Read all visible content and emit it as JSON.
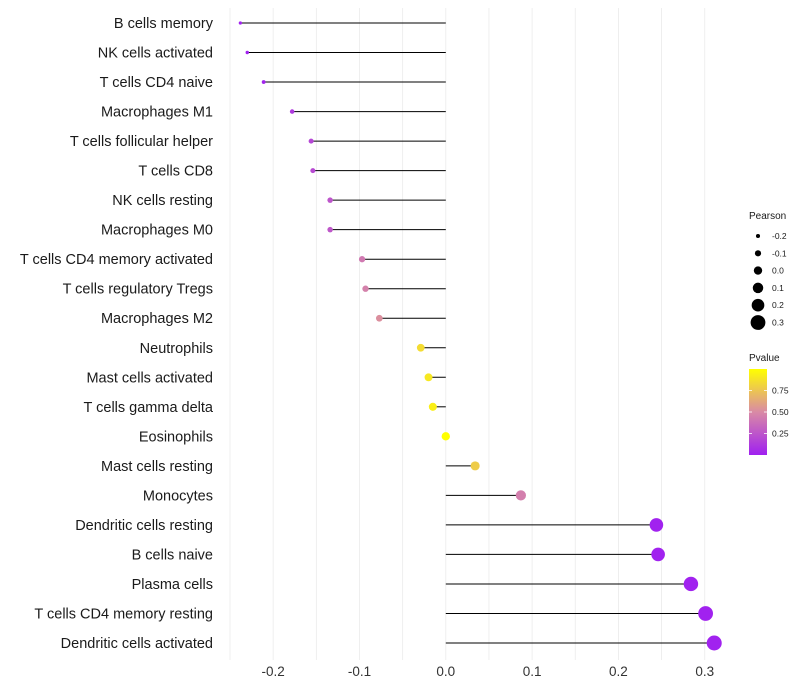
{
  "chart_data": {
    "type": "lollipop",
    "title": "",
    "xlabel": "",
    "ylabel": "",
    "xlim": [
      -0.25,
      0.32
    ],
    "x_ticks": [
      -0.2,
      -0.1,
      0.0,
      0.1,
      0.2,
      0.3
    ],
    "x_tick_labels": [
      "-0.2",
      "-0.1",
      "0.0",
      "0.1",
      "0.2",
      "0.3"
    ],
    "grid": true,
    "categories": [
      "B cells memory",
      "NK cells activated",
      "T cells CD4 naive",
      "Macrophages M1",
      "T cells follicular helper",
      "T cells CD8",
      "NK cells resting",
      "Macrophages M0",
      "T cells CD4 memory activated",
      "T cells regulatory  Tregs ",
      "Macrophages M2",
      "Neutrophils",
      "Mast cells activated",
      "T cells gamma delta",
      "Eosinophils",
      "Mast cells resting",
      "Monocytes",
      "Dendritic cells resting",
      "B cells naive",
      "Plasma cells",
      "T cells CD4 memory resting",
      "Dendritic cells activated"
    ],
    "pearson": [
      -0.238,
      -0.23,
      -0.211,
      -0.178,
      -0.156,
      -0.154,
      -0.134,
      -0.134,
      -0.097,
      -0.093,
      -0.077,
      -0.029,
      -0.02,
      -0.015,
      0.0,
      0.034,
      0.087,
      0.244,
      0.246,
      0.284,
      0.301,
      0.311
    ],
    "pvalue": [
      0.01,
      0.01,
      0.02,
      0.12,
      0.18,
      0.2,
      0.25,
      0.26,
      0.42,
      0.46,
      0.52,
      0.85,
      0.9,
      0.93,
      1.0,
      0.78,
      0.45,
      0.01,
      0.01,
      0.01,
      0.01,
      0.01
    ],
    "legend_size": {
      "title": "Pearson",
      "labels": [
        "-0.2",
        "-0.1",
        "0.0",
        "0.1",
        "0.2",
        "0.3"
      ],
      "values": [
        -0.2,
        -0.1,
        0.0,
        0.1,
        0.2,
        0.3
      ]
    },
    "legend_color": {
      "title": "Pvalue",
      "labels": [
        "0.75",
        "0.50",
        "0.25"
      ],
      "values": [
        0.75,
        0.5,
        0.25
      ],
      "range": [
        0,
        1
      ],
      "low_color": "#a020f0",
      "mid_color": "#d98aa5",
      "high_color": "#ffff00"
    },
    "colors": {
      "segment": "#000000",
      "grid": "#ebebeb"
    }
  }
}
